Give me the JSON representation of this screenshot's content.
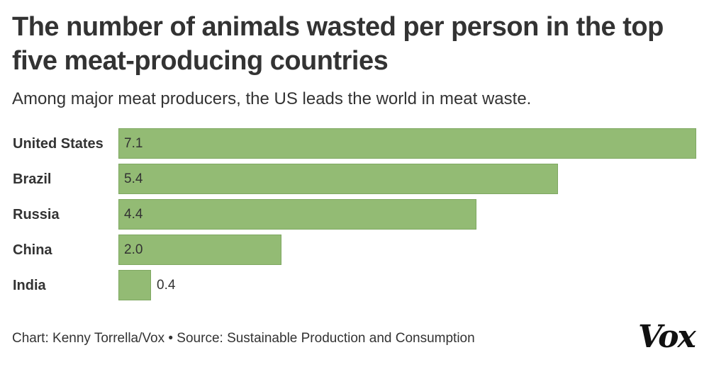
{
  "chart_data": {
    "type": "bar",
    "orientation": "horizontal",
    "title": "The number of animals wasted per person in the top five meat-producing countries",
    "subtitle": "Among major meat producers, the US leads the world in meat waste.",
    "categories": [
      "United States",
      "Brazil",
      "Russia",
      "China",
      "India"
    ],
    "values": [
      7.1,
      5.4,
      4.4,
      2.0,
      0.4
    ],
    "value_labels": [
      "7.1",
      "5.4",
      "4.4",
      "2.0",
      "0.4"
    ],
    "xlim": [
      0,
      7.1
    ],
    "xlabel": "",
    "ylabel": "",
    "grid": false,
    "bar_color": "#93bb74"
  },
  "footer": {
    "credit": "Chart: Kenny Torrella/Vox • Source: Sustainable Production and Consumption"
  },
  "logo": {
    "text": "Vox"
  }
}
